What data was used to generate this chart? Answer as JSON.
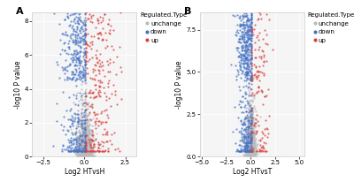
{
  "panel_A": {
    "xlabel": "Log2 HTvsH",
    "ylabel": "-log10 P value",
    "label": "A",
    "xlim": [
      -3.2,
      3.2
    ],
    "ylim": [
      0,
      8.5
    ],
    "xticks": [
      -2.5,
      0.0,
      2.5
    ],
    "yticks": [
      0,
      2,
      4,
      6,
      8
    ],
    "unchanged_color": "#BBBBBB",
    "down_color": "#4472C4",
    "up_color": "#D94040",
    "n_unchanged": 1000,
    "n_down": 500,
    "n_up": 280
  },
  "panel_B": {
    "xlabel": "Log2 HTvsT",
    "ylabel": "-log10 P value",
    "label": "B",
    "xlim": [
      -5.2,
      5.5
    ],
    "ylim": [
      0,
      8.5
    ],
    "xticks": [
      -5.0,
      -2.5,
      0.0,
      2.5,
      5.0
    ],
    "yticks": [
      0.0,
      2.5,
      5.0,
      7.5
    ],
    "unchanged_color": "#BBBBBB",
    "down_color": "#4472C4",
    "up_color": "#D94040",
    "n_unchanged": 900,
    "n_down": 600,
    "n_up": 150
  },
  "legend_title": "Regulated.Type",
  "legend_labels": [
    "unchange",
    "down",
    "up"
  ],
  "background_color": "#FFFFFF",
  "plot_bg_color": "#F5F5F5",
  "grid_color": "#FFFFFF",
  "marker_size": 2.5,
  "alpha": 0.75,
  "label_fontsize": 5.5,
  "tick_fontsize": 5.0,
  "legend_fontsize": 5.0,
  "panel_label_fontsize": 8
}
